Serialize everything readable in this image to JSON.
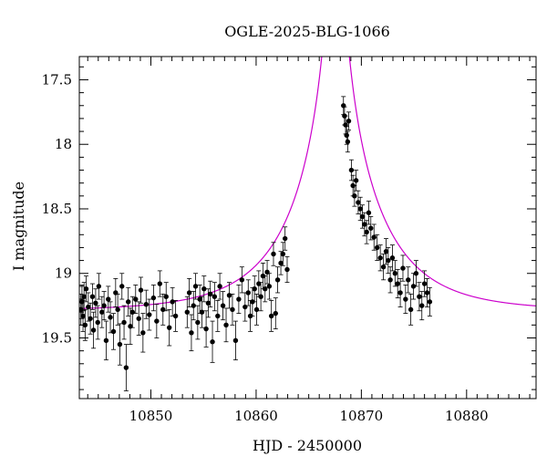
{
  "chart_data": {
    "type": "scatter",
    "title": "OGLE-2025-BLG-1066",
    "xlabel": "HJD - 2450000",
    "ylabel": "I magnitude",
    "xlim": [
      10843.2,
      10886.6
    ],
    "ylim": [
      19.97,
      17.32
    ],
    "y_inverted": true,
    "xticks": [
      10850,
      10860,
      10870,
      10880
    ],
    "yticks": [
      17.5,
      18,
      18.5,
      19,
      19.5
    ],
    "ytick_labels": [
      "17.5",
      "18",
      "18.5",
      "19",
      "19.5"
    ],
    "grid": false,
    "legend": "none",
    "colors": {
      "points": "#000000",
      "model": "#cc00cc"
    },
    "series": [
      {
        "type": "errorbar",
        "points": [
          [
            10843.35,
            19.28,
            0.12
          ],
          [
            10843.45,
            19.22,
            0.13
          ],
          [
            10843.55,
            19.33,
            0.12
          ],
          [
            10843.65,
            19.18,
            0.11
          ],
          [
            10843.75,
            19.4,
            0.12
          ],
          [
            10843.85,
            19.12,
            0.1
          ],
          [
            10844.05,
            19.26,
            0.11
          ],
          [
            10844.25,
            19.35,
            0.12
          ],
          [
            10844.45,
            19.18,
            0.1
          ],
          [
            10844.55,
            19.44,
            0.14
          ],
          [
            10844.75,
            19.23,
            0.11
          ],
          [
            10844.95,
            19.38,
            0.13
          ],
          [
            10845.05,
            19.1,
            0.1
          ],
          [
            10845.35,
            19.3,
            0.12
          ],
          [
            10845.55,
            19.25,
            0.11
          ],
          [
            10845.75,
            19.52,
            0.15
          ],
          [
            10845.95,
            19.2,
            0.1
          ],
          [
            10846.15,
            19.34,
            0.12
          ],
          [
            10846.45,
            19.45,
            0.14
          ],
          [
            10846.65,
            19.15,
            0.11
          ],
          [
            10846.85,
            19.28,
            0.12
          ],
          [
            10847.05,
            19.55,
            0.16
          ],
          [
            10847.25,
            19.1,
            0.1
          ],
          [
            10847.45,
            19.38,
            0.13
          ],
          [
            10847.65,
            19.73,
            0.18
          ],
          [
            10847.85,
            19.22,
            0.11
          ],
          [
            10848.05,
            19.41,
            0.14
          ],
          [
            10848.25,
            19.3,
            0.12
          ],
          [
            10848.55,
            19.2,
            0.11
          ],
          [
            10848.85,
            19.35,
            0.13
          ],
          [
            10849.05,
            19.13,
            0.1
          ],
          [
            10849.25,
            19.46,
            0.15
          ],
          [
            10849.55,
            19.24,
            0.11
          ],
          [
            10849.85,
            19.32,
            0.12
          ],
          [
            10850.25,
            19.19,
            0.1
          ],
          [
            10850.55,
            19.37,
            0.13
          ],
          [
            10850.85,
            19.08,
            0.1
          ],
          [
            10851.15,
            19.28,
            0.12
          ],
          [
            10851.45,
            19.18,
            0.11
          ],
          [
            10851.75,
            19.42,
            0.14
          ],
          [
            10852.05,
            19.22,
            0.11
          ],
          [
            10852.35,
            19.33,
            0.12
          ],
          [
            10853.45,
            19.3,
            0.12
          ],
          [
            10853.65,
            19.15,
            0.11
          ],
          [
            10853.85,
            19.46,
            0.14
          ],
          [
            10854.05,
            19.25,
            0.11
          ],
          [
            10854.25,
            19.1,
            0.1
          ],
          [
            10854.45,
            19.38,
            0.13
          ],
          [
            10854.65,
            19.2,
            0.11
          ],
          [
            10854.85,
            19.3,
            0.12
          ],
          [
            10855.05,
            19.12,
            0.1
          ],
          [
            10855.25,
            19.43,
            0.14
          ],
          [
            10855.45,
            19.23,
            0.11
          ],
          [
            10855.65,
            19.16,
            0.1
          ],
          [
            10855.85,
            19.53,
            0.16
          ],
          [
            10856.05,
            19.18,
            0.11
          ],
          [
            10856.35,
            19.33,
            0.12
          ],
          [
            10856.55,
            19.1,
            0.1
          ],
          [
            10856.85,
            19.25,
            0.11
          ],
          [
            10857.15,
            19.4,
            0.13
          ],
          [
            10857.45,
            19.17,
            0.1
          ],
          [
            10857.75,
            19.28,
            0.12
          ],
          [
            10858.05,
            19.52,
            0.15
          ],
          [
            10858.35,
            19.2,
            0.11
          ],
          [
            10858.65,
            19.05,
            0.1
          ],
          [
            10858.95,
            19.26,
            0.11
          ],
          [
            10859.25,
            19.15,
            0.1
          ],
          [
            10859.45,
            19.33,
            0.12
          ],
          [
            10859.65,
            19.22,
            0.11
          ],
          [
            10859.85,
            19.12,
            0.1
          ],
          [
            10860.05,
            19.28,
            0.12
          ],
          [
            10860.25,
            19.08,
            0.1
          ],
          [
            10860.45,
            19.18,
            0.11
          ],
          [
            10860.65,
            19.02,
            0.1
          ],
          [
            10860.85,
            19.12,
            0.1
          ],
          [
            10861.05,
            18.99,
            0.09
          ],
          [
            10861.25,
            19.1,
            0.1
          ],
          [
            10861.45,
            19.33,
            0.12
          ],
          [
            10861.65,
            18.85,
            0.09
          ],
          [
            10861.85,
            19.31,
            0.12
          ],
          [
            10862.05,
            19.05,
            0.1
          ],
          [
            10862.35,
            18.92,
            0.09
          ],
          [
            10862.55,
            18.85,
            0.09
          ],
          [
            10862.75,
            18.73,
            0.09
          ],
          [
            10862.95,
            18.97,
            0.1
          ],
          [
            10868.3,
            17.7,
            0.07
          ],
          [
            10868.4,
            17.78,
            0.07
          ],
          [
            10868.5,
            17.85,
            0.07
          ],
          [
            10868.6,
            17.93,
            0.07
          ],
          [
            10868.7,
            17.98,
            0.08
          ],
          [
            10868.8,
            17.82,
            0.07
          ],
          [
            10869.05,
            18.2,
            0.08
          ],
          [
            10869.2,
            18.32,
            0.08
          ],
          [
            10869.35,
            18.4,
            0.08
          ],
          [
            10869.5,
            18.28,
            0.08
          ],
          [
            10869.7,
            18.45,
            0.09
          ],
          [
            10869.9,
            18.5,
            0.09
          ],
          [
            10870.1,
            18.56,
            0.09
          ],
          [
            10870.3,
            18.62,
            0.09
          ],
          [
            10870.5,
            18.68,
            0.09
          ],
          [
            10870.7,
            18.53,
            0.09
          ],
          [
            10870.9,
            18.65,
            0.09
          ],
          [
            10871.2,
            18.72,
            0.1
          ],
          [
            10871.5,
            18.8,
            0.1
          ],
          [
            10871.8,
            18.88,
            0.1
          ],
          [
            10872.1,
            18.95,
            0.1
          ],
          [
            10872.35,
            18.83,
            0.1
          ],
          [
            10872.55,
            18.9,
            0.1
          ],
          [
            10872.75,
            19.05,
            0.1
          ],
          [
            10872.95,
            18.88,
            0.1
          ],
          [
            10873.2,
            19.0,
            0.1
          ],
          [
            10873.45,
            19.08,
            0.11
          ],
          [
            10873.7,
            19.15,
            0.11
          ],
          [
            10873.95,
            18.96,
            0.1
          ],
          [
            10874.2,
            19.2,
            0.11
          ],
          [
            10874.45,
            19.05,
            0.1
          ],
          [
            10874.7,
            19.28,
            0.12
          ],
          [
            10874.95,
            19.1,
            0.1
          ],
          [
            10875.2,
            19.0,
            0.1
          ],
          [
            10875.5,
            19.18,
            0.11
          ],
          [
            10875.75,
            19.25,
            0.11
          ],
          [
            10876.0,
            19.08,
            0.1
          ],
          [
            10876.25,
            19.15,
            0.11
          ],
          [
            10876.5,
            19.22,
            0.11
          ]
        ]
      },
      {
        "type": "model_curve",
        "model": {
          "t0": 10867.55,
          "u0": 0.0065,
          "tE": 8.0,
          "m_base": 19.29
        }
      }
    ]
  }
}
